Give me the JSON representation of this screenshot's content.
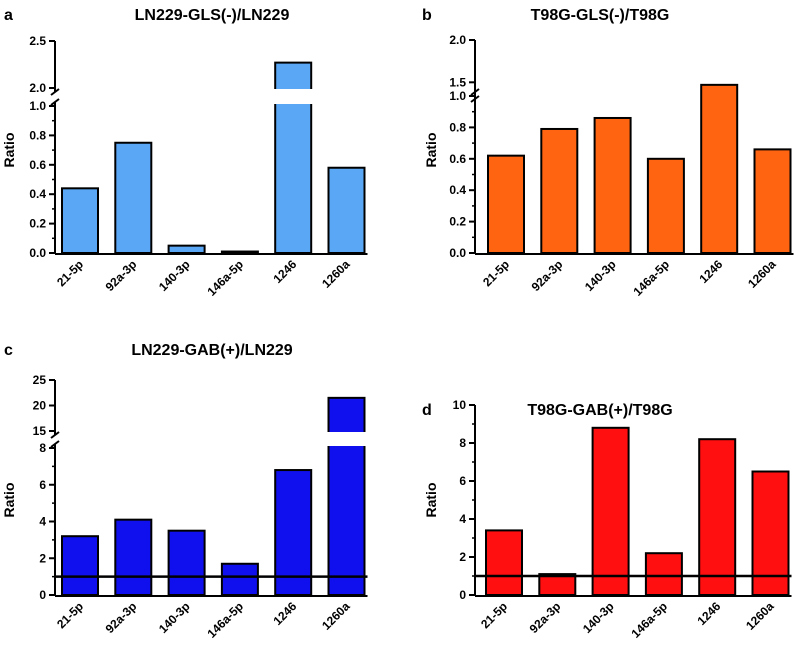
{
  "chart_data": [
    {
      "panel": "a",
      "type": "bar",
      "title": "LN229-GLS(-)/LN229",
      "ylabel": "Ratio",
      "xlabel": "",
      "categories": [
        "21-5p",
        "92a-3p",
        "140-3p",
        "146a-5p",
        "1246",
        "1260a"
      ],
      "values": [
        0.44,
        0.75,
        0.05,
        0.01,
        2.27,
        0.58
      ],
      "color": "#5aa7f5",
      "broken_axis": true,
      "lower_range": [
        0,
        1.0
      ],
      "lower_ticks": [
        "0.0",
        "0.2",
        "0.4",
        "0.6",
        "0.8",
        "1.0"
      ],
      "upper_range": [
        2.0,
        2.5
      ],
      "upper_ticks": [
        "2.0",
        "2.5"
      ],
      "reference_line": null
    },
    {
      "panel": "b",
      "type": "bar",
      "title": "T98G-GLS(-)/T98G",
      "ylabel": "Ratio",
      "xlabel": "",
      "categories": [
        "21-5p",
        "92a-3p",
        "140-3p",
        "146a-5p",
        "1246",
        "1260a"
      ],
      "values": [
        0.62,
        0.79,
        0.86,
        0.6,
        1.47,
        0.66
      ],
      "color": "#ff6410",
      "broken_axis": true,
      "lower_range": [
        0,
        1.0
      ],
      "lower_ticks": [
        "0.0",
        "0.2",
        "0.4",
        "0.6",
        "0.8",
        "1.0"
      ],
      "upper_range": [
        1.35,
        2.0
      ],
      "upper_ticks": [
        "1.5",
        "2.0"
      ],
      "reference_line": null
    },
    {
      "panel": "c",
      "type": "bar",
      "title": "LN229-GAB(+)/LN229",
      "ylabel": "Ratio",
      "xlabel": "",
      "categories": [
        "21-5p",
        "92a-3p",
        "140-3p",
        "146a-5p",
        "1246",
        "1260a"
      ],
      "values": [
        3.2,
        4.1,
        3.5,
        1.7,
        6.8,
        21.5
      ],
      "color": "#1010ee",
      "broken_axis": true,
      "lower_range": [
        0,
        8
      ],
      "lower_ticks": [
        "0",
        "2",
        "4",
        "6",
        "8"
      ],
      "upper_range": [
        15,
        25
      ],
      "upper_ticks": [
        "15",
        "20",
        "25"
      ],
      "reference_line": 1
    },
    {
      "panel": "d",
      "type": "bar",
      "title": "T98G-GAB(+)/T98G",
      "ylabel": "Ratio",
      "xlabel": "",
      "categories": [
        "21-5p",
        "92a-3p",
        "140-3p",
        "146a-5p",
        "1246",
        "1260a"
      ],
      "values": [
        3.4,
        1.1,
        8.8,
        2.2,
        8.2,
        6.5
      ],
      "color": "#ff0f0f",
      "broken_axis": false,
      "ylim": [
        0,
        10
      ],
      "ticks": [
        "0",
        "2",
        "4",
        "6",
        "8",
        "10"
      ],
      "reference_line": 1
    }
  ]
}
